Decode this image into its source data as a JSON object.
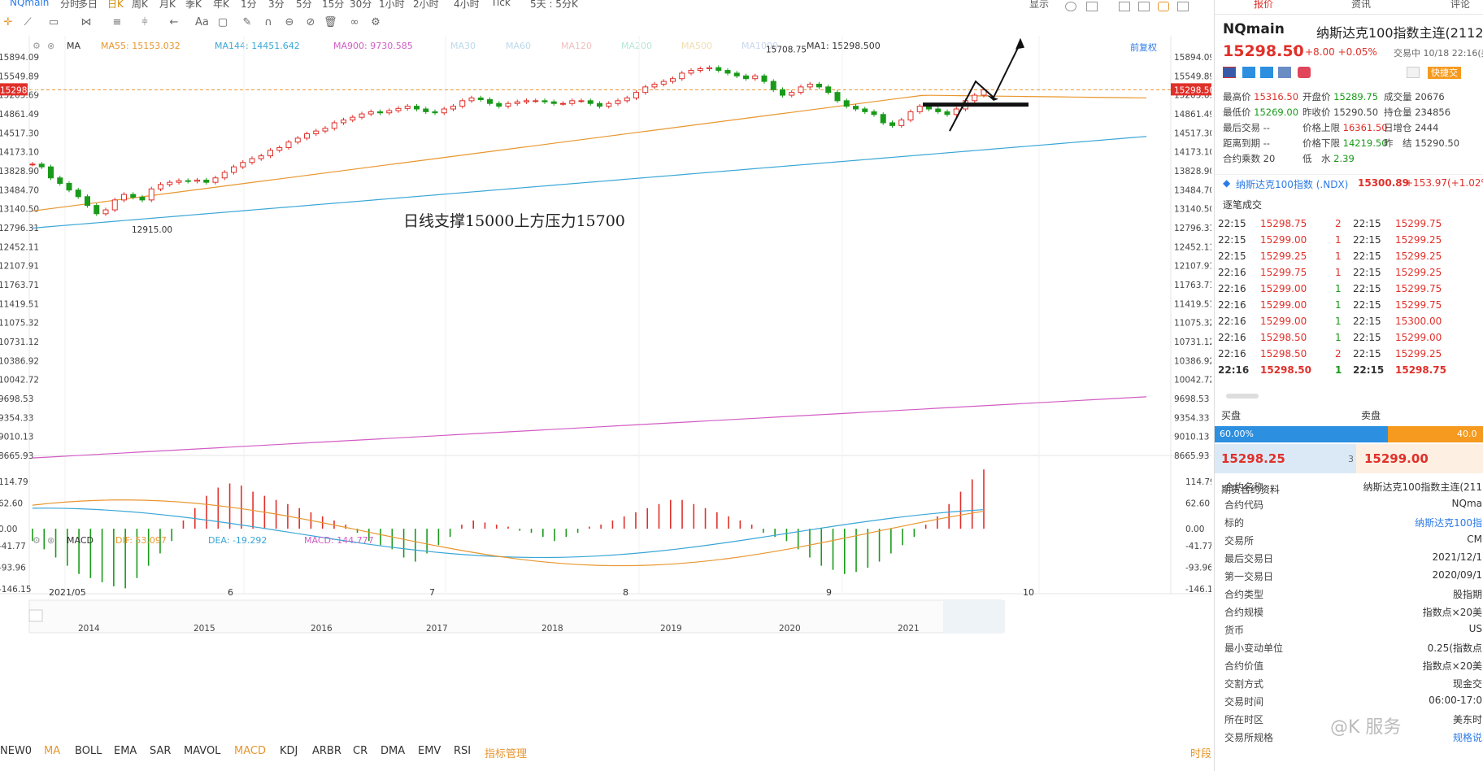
{
  "toolbar": {
    "symbol": "NQmain",
    "timeframes": [
      "分时",
      "多日",
      "日K",
      "周K",
      "月K",
      "季K",
      "年K",
      "1分",
      "3分",
      "5分",
      "15分",
      "30分",
      "1小时",
      "2小时",
      "4小时",
      "Tick",
      "5天 : 5分K"
    ],
    "active_timeframe": "日K",
    "right_labels": [
      "显示"
    ]
  },
  "ma_legend": {
    "name": "MA",
    "items": [
      {
        "text": "MA55: 15153.032",
        "color": "#e8962e"
      },
      {
        "text": "MA144: 14451.642",
        "color": "#3aa6d6"
      },
      {
        "text": "MA900: 9730.585",
        "color": "#d25cc3"
      },
      {
        "text": "MA30",
        "color": "#bcd9ec"
      },
      {
        "text": "MA60",
        "color": "#bcd9ec"
      },
      {
        "text": "MA120",
        "color": "#f1c0c0"
      },
      {
        "text": "MA200",
        "color": "#b7e6d6"
      },
      {
        "text": "MA500",
        "color": "#f1dcb0"
      },
      {
        "text": "MA1000",
        "color": "#c9d6ee"
      },
      {
        "text": "MA1: 15298.500",
        "color": "#333333"
      }
    ],
    "right_label": "前复权"
  },
  "main_chart": {
    "y_ticks": [
      "15894.09",
      "15549.89",
      "15205.69",
      "14861.49",
      "14517.30",
      "14173.10",
      "13828.90",
      "13484.70",
      "13140.50",
      "12796.31",
      "12452.11",
      "12107.91",
      "11763.71",
      "11419.51",
      "11075.32",
      "10731.12",
      "10386.92",
      "10042.72",
      "9698.53",
      "9354.33",
      "9010.13",
      "8665.93"
    ],
    "current_price_label": "15298.50",
    "high_label": "15708.75",
    "low_label": "12915.00",
    "annotation": "日线支撑15000上方压力15700"
  },
  "macd_legend": {
    "name": "MACD",
    "items": [
      {
        "text": "DIF: 53.097",
        "color": "#e8962e"
      },
      {
        "text": "DEA: -19.292",
        "color": "#3aa6d6"
      },
      {
        "text": "MACD: 144.777",
        "color": "#d25cc3"
      }
    ],
    "y_ticks": [
      "114.79",
      "62.60",
      "0.00",
      "-41.77",
      "-93.96",
      "-146.15"
    ]
  },
  "x_axis": {
    "labels": [
      "2021/05",
      "6",
      "7",
      "8",
      "9",
      "10"
    ]
  },
  "overview_axis": {
    "labels": [
      "2014",
      "2015",
      "2016",
      "2017",
      "2018",
      "2019",
      "2020",
      "2021"
    ]
  },
  "indicators": {
    "items": [
      "NEW0",
      "MA",
      "BOLL",
      "EMA",
      "SAR",
      "MAVOL",
      "MACD",
      "KDJ",
      "ARBR",
      "CR",
      "DMA",
      "EMV",
      "RSI",
      "指标管理"
    ],
    "right_label": "时段"
  },
  "quote": {
    "tabs": [
      "报价",
      "资讯",
      "评论"
    ],
    "symbol": "NQmain",
    "name": "纳斯达克100指数主连(2112)",
    "price": "15298.50",
    "change": "+8.00",
    "change_pct": "+0.05%",
    "trade_time": "交易中 10/18 22:16(美",
    "quick_trade": "快捷交",
    "rows": [
      [
        {
          "k": "最高价",
          "v": "15316.50",
          "c": "v"
        },
        {
          "k": "开盘价",
          "v": "15289.75",
          "c": "g"
        },
        {
          "k": "成交量",
          "v": "20676",
          "c": "k"
        }
      ],
      [
        {
          "k": "最低价",
          "v": "15269.00",
          "c": "g"
        },
        {
          "k": "昨收价",
          "v": "15290.50",
          "c": "k"
        },
        {
          "k": "持仓量",
          "v": "234856",
          "c": "k"
        }
      ],
      [
        {
          "k": "最后交易",
          "v": "--",
          "c": "k"
        },
        {
          "k": "价格上限",
          "v": "16361.50",
          "c": "v"
        },
        {
          "k": "日增仓",
          "v": "2444",
          "c": "k"
        }
      ],
      [
        {
          "k": "距离到期",
          "v": "--",
          "c": "k"
        },
        {
          "k": "价格下限",
          "v": "14219.50",
          "c": "g"
        },
        {
          "k": "昨　结",
          "v": "15290.50",
          "c": "k"
        }
      ],
      [
        {
          "k": "合约乘数",
          "v": "20",
          "c": "k"
        },
        {
          "k": "低　水",
          "v": "2.39",
          "c": "g"
        },
        {
          "k": "",
          "v": "",
          "c": "k"
        }
      ]
    ],
    "index_name": "纳斯达克100指数 (.NDX)",
    "index_price": "15300.89",
    "index_change": "+153.97(+1.02%"
  },
  "ticks": {
    "title": "逐笔成交",
    "rows": [
      [
        "22:15",
        "15298.75",
        "2",
        "22:15",
        "15299.75"
      ],
      [
        "22:15",
        "15299.00",
        "1",
        "22:15",
        "15299.25"
      ],
      [
        "22:15",
        "15299.25",
        "1",
        "22:15",
        "15299.25"
      ],
      [
        "22:16",
        "15299.75",
        "1",
        "22:15",
        "15299.25"
      ],
      [
        "22:16",
        "15299.00",
        "1",
        "22:15",
        "15299.75"
      ],
      [
        "22:16",
        "15299.00",
        "1",
        "22:15",
        "15299.75"
      ],
      [
        "22:16",
        "15299.00",
        "1",
        "22:15",
        "15300.00"
      ],
      [
        "22:16",
        "15298.50",
        "1",
        "22:15",
        "15299.00"
      ],
      [
        "22:16",
        "15298.50",
        "2",
        "22:15",
        "15299.25"
      ],
      [
        "22:16",
        "15298.50",
        "1",
        "22:15",
        "15298.75"
      ]
    ]
  },
  "orderbook": {
    "buy_label": "买盘",
    "sell_label": "卖盘",
    "buy_pct": "60.00%",
    "sell_pct": "40.0",
    "bid": "15298.25",
    "bid_size": "3",
    "ask": "15299.00"
  },
  "contract": {
    "title": "期货合约资料",
    "rows": [
      [
        "合约名称",
        "纳斯达克100指数主连(211"
      ],
      [
        "合约代码",
        "NQma"
      ],
      [
        "标的",
        "纳斯达克100指"
      ],
      [
        "交易所",
        "CM"
      ],
      [
        "最后交易日",
        "2021/12/1"
      ],
      [
        "第一交易日",
        "2020/09/1"
      ],
      [
        "合约类型",
        "股指期"
      ],
      [
        "合约规模",
        "指数点×20美"
      ],
      [
        "货币",
        "US"
      ],
      [
        "最小变动单位",
        "0.25(指数点"
      ],
      [
        "合约价值",
        "指数点×20美"
      ],
      [
        "交割方式",
        "现金交"
      ],
      [
        "交易时间",
        "06:00-17:0"
      ],
      [
        "所在时区",
        "美东时"
      ],
      [
        "交易所规格",
        "规格说"
      ]
    ]
  },
  "watermark": "@K 服务",
  "colors": {
    "up": "#e0302a",
    "down": "#1a9a1a",
    "accent": "#d58a00",
    "blue": "#2c7be5"
  }
}
